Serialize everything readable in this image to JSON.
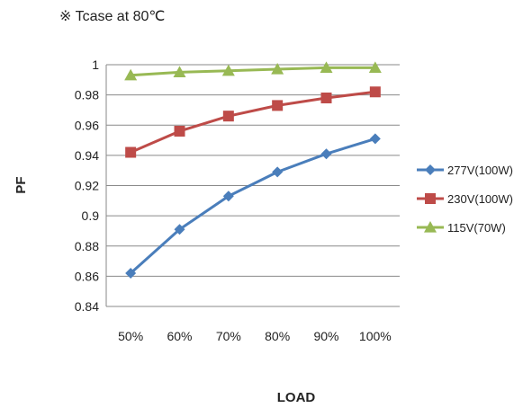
{
  "chart_data": {
    "type": "line",
    "title": "※ Tcase at 80℃",
    "xlabel": "LOAD",
    "ylabel": "PF",
    "categories": [
      "50%",
      "60%",
      "70%",
      "80%",
      "90%",
      "100%"
    ],
    "ylim": [
      0.84,
      1.0
    ],
    "yticks": [
      "0.84",
      "0.86",
      "0.88",
      "0.9",
      "0.92",
      "0.94",
      "0.96",
      "0.98",
      "1"
    ],
    "grid": true,
    "legend_position": "right",
    "series": [
      {
        "name": "277V(100W)",
        "color": "#4a7ebb",
        "marker": "diamond",
        "values": [
          0.862,
          0.891,
          0.913,
          0.929,
          0.941,
          0.951
        ]
      },
      {
        "name": "230V(100W)",
        "color": "#be4b48",
        "marker": "square",
        "values": [
          0.942,
          0.956,
          0.966,
          0.973,
          0.978,
          0.982
        ]
      },
      {
        "name": "115V(70W)",
        "color": "#98b954",
        "marker": "triangle",
        "values": [
          0.993,
          0.995,
          0.996,
          0.997,
          0.998,
          0.998
        ]
      }
    ]
  }
}
